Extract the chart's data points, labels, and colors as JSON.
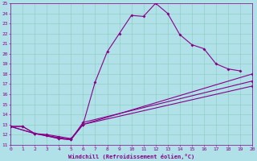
{
  "xlabel": "Windchill (Refroidissement éolien,°C)",
  "xlim": [
    0,
    20
  ],
  "ylim": [
    11,
    25
  ],
  "xticks": [
    0,
    1,
    2,
    3,
    4,
    5,
    6,
    7,
    8,
    9,
    10,
    11,
    12,
    13,
    14,
    15,
    16,
    17,
    18,
    19,
    20
  ],
  "yticks": [
    11,
    12,
    13,
    14,
    15,
    16,
    17,
    18,
    19,
    20,
    21,
    22,
    23,
    24,
    25
  ],
  "background_color": "#b0e0e8",
  "line_color": "#880088",
  "grid_color": "#88ccbb",
  "curve1": [
    [
      0,
      12.8
    ],
    [
      1,
      12.8
    ],
    [
      2,
      12.1
    ],
    [
      3,
      12.0
    ],
    [
      4,
      11.8
    ],
    [
      5,
      11.6
    ],
    [
      6,
      13.0
    ],
    [
      7,
      17.2
    ],
    [
      8,
      20.2
    ],
    [
      9,
      22.0
    ],
    [
      10,
      23.8
    ],
    [
      11,
      23.7
    ],
    [
      12,
      25.0
    ],
    [
      13,
      24.0
    ],
    [
      14,
      21.9
    ],
    [
      15,
      20.9
    ],
    [
      16,
      20.5
    ],
    [
      17,
      19.0
    ],
    [
      18,
      18.5
    ],
    [
      19,
      18.3
    ]
  ],
  "curve2": [
    [
      0,
      12.8
    ],
    [
      1,
      12.8
    ],
    [
      2,
      12.1
    ],
    [
      3,
      11.9
    ],
    [
      4,
      11.6
    ],
    [
      5,
      11.5
    ],
    [
      6,
      13.0
    ],
    [
      20,
      18.0
    ]
  ],
  "curve3": [
    [
      0,
      12.8
    ],
    [
      2,
      12.1
    ],
    [
      3,
      11.9
    ],
    [
      4,
      11.7
    ],
    [
      5,
      11.5
    ],
    [
      6,
      13.2
    ],
    [
      20,
      17.3
    ]
  ],
  "curve4": [
    [
      0,
      12.8
    ],
    [
      2,
      12.1
    ],
    [
      4,
      11.6
    ],
    [
      5,
      11.5
    ],
    [
      6,
      13.0
    ],
    [
      20,
      16.8
    ]
  ]
}
